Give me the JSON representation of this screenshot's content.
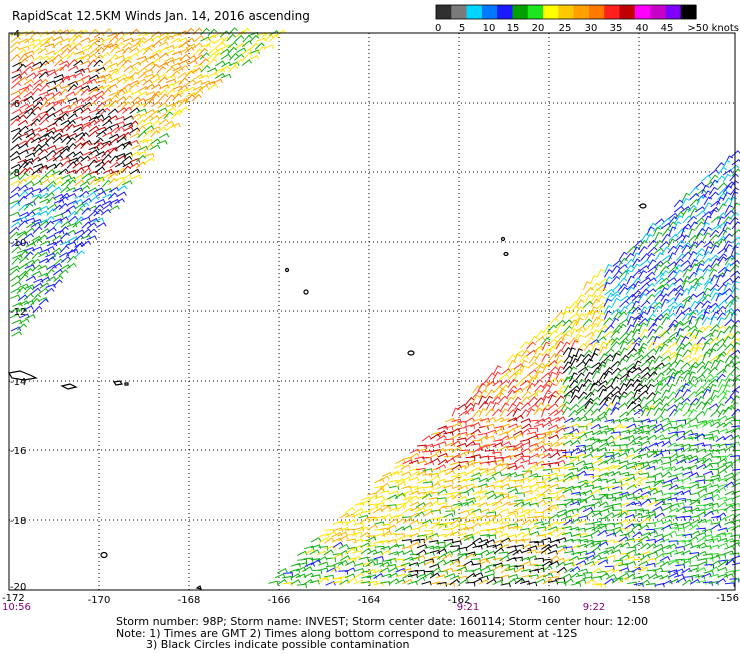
{
  "title": "RapidScat 12.5KM Winds Jan. 14, 2016 ascending",
  "colorbar": {
    "labels": [
      "0",
      "5",
      "10",
      "15",
      "20",
      "25",
      "30",
      "35",
      "40",
      "45",
      ">50 knots"
    ],
    "colors": [
      "#303030",
      "#7a7a7a",
      "#00d7ff",
      "#0078ff",
      "#1a1aff",
      "#00a000",
      "#1ee61e",
      "#ffff00",
      "#ffc800",
      "#ffa000",
      "#ff7800",
      "#ff2020",
      "#c00000",
      "#ff00ff",
      "#c800c8",
      "#8000ff",
      "#000000"
    ]
  },
  "map": {
    "lon_range": [
      -172,
      -156
    ],
    "lat_range": [
      -20,
      -4
    ],
    "x_ticks": [
      "-170",
      "-168",
      "-166",
      "-164",
      "-162",
      "-160",
      "-158"
    ],
    "x_corner_labels": [
      "-172",
      "-156"
    ],
    "y_ticks": [
      "-4",
      "-6",
      "-8",
      "-10",
      "-12",
      "-14",
      "-16",
      "-18",
      "-20"
    ],
    "time_labels": [
      "10:56",
      "9:21",
      "9:22"
    ]
  },
  "footer": {
    "line1": "Storm number: 98P;  Storm name: INVEST;  Storm center date: 160114;  Storm center hour: 12:00",
    "line2": "Note: 1) Times are GMT  2) Times along bottom correspond to measurement at -12S",
    "line3": "3) Black Circles indicate possible contamination"
  }
}
